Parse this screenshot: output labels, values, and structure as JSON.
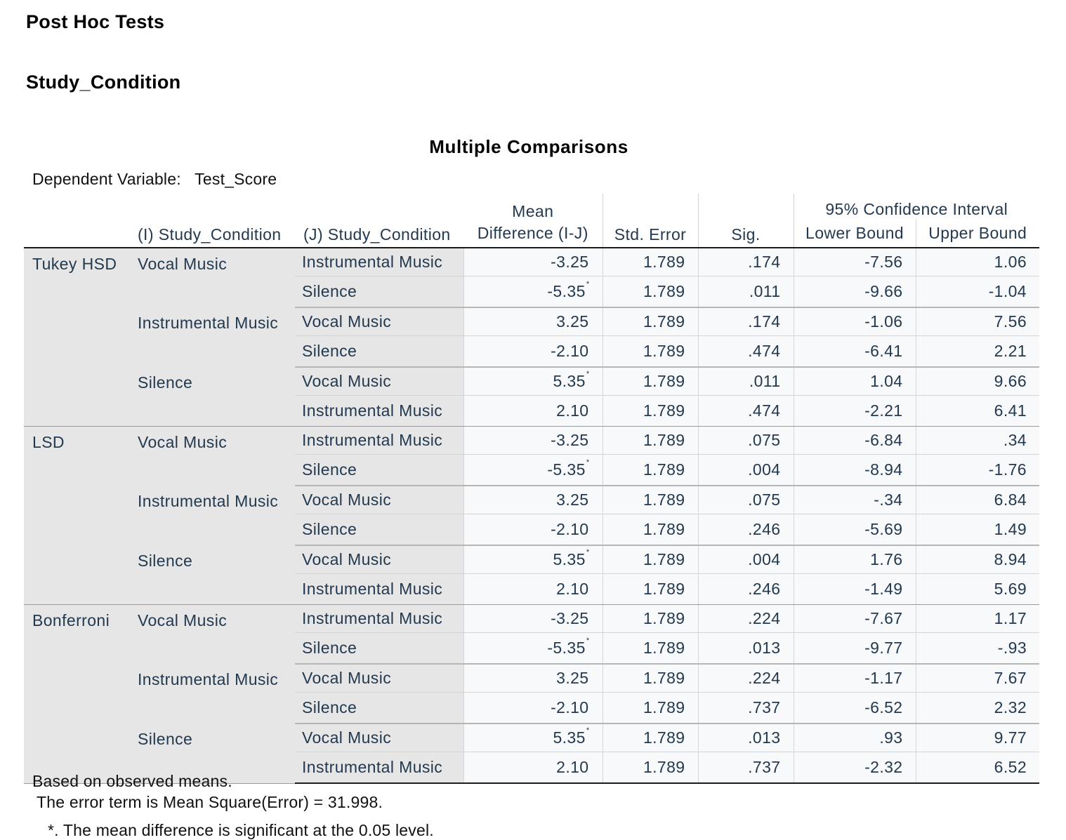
{
  "headings": {
    "post_hoc": "Post Hoc Tests",
    "factor": "Study_Condition"
  },
  "table": {
    "title": "Multiple Comparisons",
    "dependent_label": "Dependent Variable:",
    "dependent_value": "Test_Score",
    "columns": {
      "i": "(I) Study_Condition",
      "j": "(J) Study_Condition",
      "mean_top": "Mean",
      "mean_bottom": "Difference (I-J)",
      "std_error": "Std. Error",
      "sig": "Sig.",
      "ci": "95% Confidence Interval",
      "lower": "Lower Bound",
      "upper": "Upper Bound"
    },
    "methods": [
      {
        "name": "Tukey HSD",
        "groups": [
          {
            "i": "Vocal Music",
            "rows": [
              {
                "j": "Instrumental Music",
                "mean_diff": "-3.25",
                "star": "",
                "se": "1.789",
                "sig": ".174",
                "lower": "-7.56",
                "upper": "1.06"
              },
              {
                "j": "Silence",
                "mean_diff": "-5.35",
                "star": "*",
                "se": "1.789",
                "sig": ".011",
                "lower": "-9.66",
                "upper": "-1.04"
              }
            ]
          },
          {
            "i": "Instrumental Music",
            "rows": [
              {
                "j": "Vocal Music",
                "mean_diff": "3.25",
                "star": "",
                "se": "1.789",
                "sig": ".174",
                "lower": "-1.06",
                "upper": "7.56"
              },
              {
                "j": "Silence",
                "mean_diff": "-2.10",
                "star": "",
                "se": "1.789",
                "sig": ".474",
                "lower": "-6.41",
                "upper": "2.21"
              }
            ]
          },
          {
            "i": "Silence",
            "rows": [
              {
                "j": "Vocal Music",
                "mean_diff": "5.35",
                "star": "*",
                "se": "1.789",
                "sig": ".011",
                "lower": "1.04",
                "upper": "9.66"
              },
              {
                "j": "Instrumental Music",
                "mean_diff": "2.10",
                "star": "",
                "se": "1.789",
                "sig": ".474",
                "lower": "-2.21",
                "upper": "6.41"
              }
            ]
          }
        ]
      },
      {
        "name": "LSD",
        "groups": [
          {
            "i": "Vocal Music",
            "rows": [
              {
                "j": "Instrumental Music",
                "mean_diff": "-3.25",
                "star": "",
                "se": "1.789",
                "sig": ".075",
                "lower": "-6.84",
                "upper": ".34"
              },
              {
                "j": "Silence",
                "mean_diff": "-5.35",
                "star": "*",
                "se": "1.789",
                "sig": ".004",
                "lower": "-8.94",
                "upper": "-1.76"
              }
            ]
          },
          {
            "i": "Instrumental Music",
            "rows": [
              {
                "j": "Vocal Music",
                "mean_diff": "3.25",
                "star": "",
                "se": "1.789",
                "sig": ".075",
                "lower": "-.34",
                "upper": "6.84"
              },
              {
                "j": "Silence",
                "mean_diff": "-2.10",
                "star": "",
                "se": "1.789",
                "sig": ".246",
                "lower": "-5.69",
                "upper": "1.49"
              }
            ]
          },
          {
            "i": "Silence",
            "rows": [
              {
                "j": "Vocal Music",
                "mean_diff": "5.35",
                "star": "*",
                "se": "1.789",
                "sig": ".004",
                "lower": "1.76",
                "upper": "8.94"
              },
              {
                "j": "Instrumental Music",
                "mean_diff": "2.10",
                "star": "",
                "se": "1.789",
                "sig": ".246",
                "lower": "-1.49",
                "upper": "5.69"
              }
            ]
          }
        ]
      },
      {
        "name": "Bonferroni",
        "groups": [
          {
            "i": "Vocal Music",
            "rows": [
              {
                "j": "Instrumental Music",
                "mean_diff": "-3.25",
                "star": "",
                "se": "1.789",
                "sig": ".224",
                "lower": "-7.67",
                "upper": "1.17"
              },
              {
                "j": "Silence",
                "mean_diff": "-5.35",
                "star": "*",
                "se": "1.789",
                "sig": ".013",
                "lower": "-9.77",
                "upper": "-.93"
              }
            ]
          },
          {
            "i": "Instrumental Music",
            "rows": [
              {
                "j": "Vocal Music",
                "mean_diff": "3.25",
                "star": "",
                "se": "1.789",
                "sig": ".224",
                "lower": "-1.17",
                "upper": "7.67"
              },
              {
                "j": "Silence",
                "mean_diff": "-2.10",
                "star": "",
                "se": "1.789",
                "sig": ".737",
                "lower": "-6.52",
                "upper": "2.32"
              }
            ]
          },
          {
            "i": "Silence",
            "rows": [
              {
                "j": "Vocal Music",
                "mean_diff": "5.35",
                "star": "*",
                "se": "1.789",
                "sig": ".013",
                "lower": ".93",
                "upper": "9.77"
              },
              {
                "j": "Instrumental Music",
                "mean_diff": "2.10",
                "star": "",
                "se": "1.789",
                "sig": ".737",
                "lower": "-2.32",
                "upper": "6.52"
              }
            ]
          }
        ]
      }
    ]
  },
  "footnotes": {
    "line1": "Based on observed means.",
    "line2": "The error term is Mean Square(Error) = 31.998.",
    "line3": "*. The mean difference is significant at the 0.05 level."
  }
}
